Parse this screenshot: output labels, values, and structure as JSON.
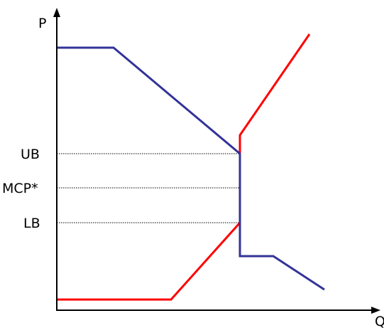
{
  "axes": {
    "y_label": "P",
    "x_label": "Q"
  },
  "levels": {
    "upper": "UB",
    "mcp": "MCP*",
    "lower": "LB"
  },
  "colors": {
    "demand": "#333399",
    "supply": "#ff0000",
    "axis": "#000000",
    "guide": "#000000"
  }
}
